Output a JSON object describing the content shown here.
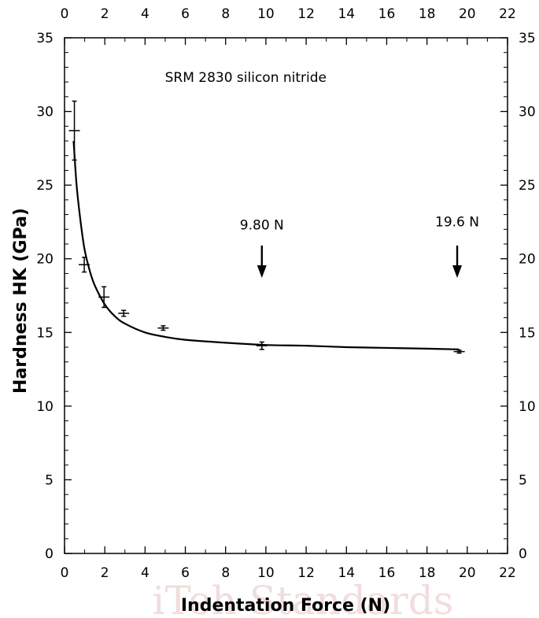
{
  "chart_data": {
    "type": "scatter",
    "title": "",
    "xlabel": "Indentation Force (N)",
    "ylabel": "Hardness HK (GPa)",
    "xlim": [
      0,
      22
    ],
    "ylim": [
      0,
      35
    ],
    "x_ticks": [
      0,
      2,
      4,
      6,
      8,
      10,
      12,
      14,
      16,
      18,
      20,
      22
    ],
    "y_ticks": [
      0,
      5,
      10,
      15,
      20,
      25,
      30,
      35
    ],
    "grid": false,
    "mirrored_axes": true,
    "series": [
      {
        "points": [
          {
            "x": 0.49,
            "y": 28.7,
            "yerr": 2.0
          },
          {
            "x": 0.98,
            "y": 19.6,
            "yerr": 0.5
          },
          {
            "x": 1.96,
            "y": 17.4,
            "yerr": 0.7
          },
          {
            "x": 2.94,
            "y": 16.3,
            "yerr": 0.2
          },
          {
            "x": 4.9,
            "y": 15.3,
            "yerr": 0.15
          },
          {
            "x": 9.8,
            "y": 14.1,
            "yerr": 0.25
          },
          {
            "x": 19.6,
            "y": 13.7,
            "yerr": 0.1
          }
        ]
      }
    ],
    "fit_curve": {
      "x": [
        0.45,
        0.6,
        0.8,
        1.0,
        1.25,
        1.5,
        2.0,
        2.5,
        3.0,
        4.0,
        5.0,
        6.0,
        8.0,
        10.0,
        12.0,
        14.0,
        16.0,
        18.0,
        19.6
      ],
      "y": [
        28.0,
        25.0,
        22.5,
        20.6,
        19.2,
        18.2,
        16.9,
        16.1,
        15.6,
        15.0,
        14.7,
        14.5,
        14.3,
        14.15,
        14.1,
        14.0,
        13.95,
        13.9,
        13.85
      ]
    },
    "annotations": [
      {
        "text": "SRM 2830 silicon nitride",
        "x": 9.0,
        "y": 32.0
      },
      {
        "text": "9.80 N",
        "x": 9.8,
        "y": 22.0,
        "arrow_from": 20.9,
        "arrow_to": 18.7
      },
      {
        "text": "19.6 N",
        "x": 19.5,
        "y": 22.2,
        "arrow_from": 20.9,
        "arrow_to": 18.7
      }
    ],
    "watermark": "iTeh Standards"
  }
}
